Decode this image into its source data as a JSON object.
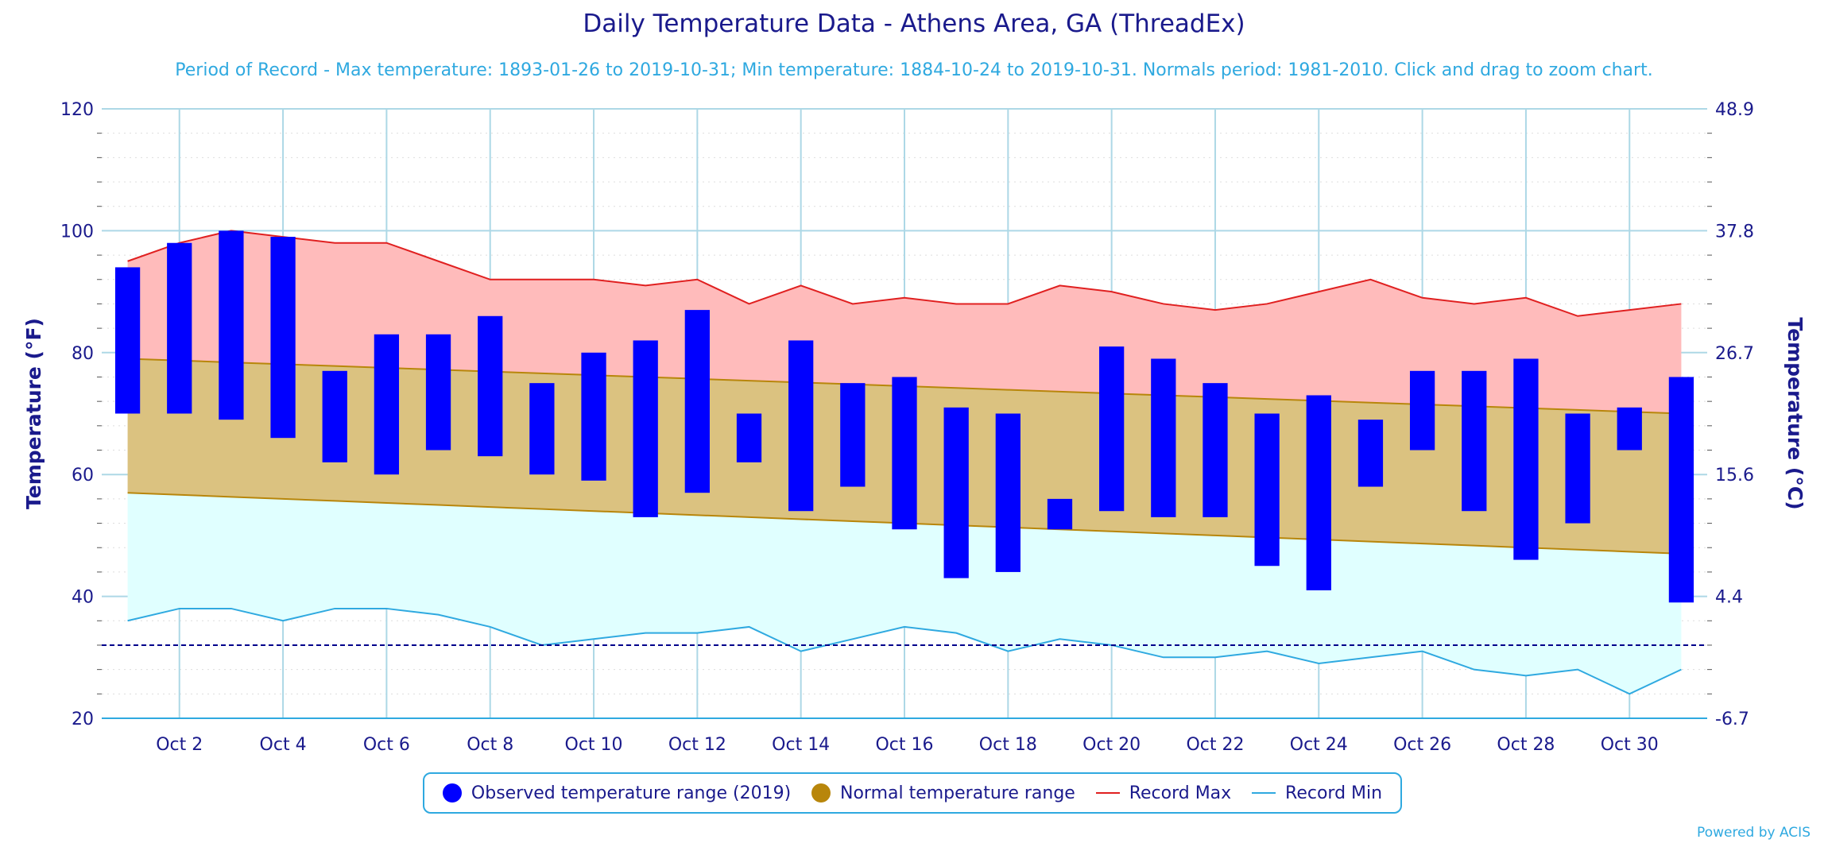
{
  "title": "Daily Temperature Data - Athens Area, GA (ThreadEx)",
  "subtitle": "Period of Record - Max temperature: 1893-01-26 to 2019-10-31; Min temperature: 1884-10-24 to 2019-10-31. Normals period: 1981-2010. Click and drag to zoom chart.",
  "powered_by": "Powered by ACIS",
  "colors": {
    "observed": "#0000ff",
    "normal_fill": "#dbc280",
    "normal_line": "#b8860b",
    "record_max_fill": "#ffbbbb",
    "record_max_line": "#e02020",
    "record_min_fill": "#e0ffff",
    "record_min_line": "#2fa9e0",
    "freezing_line": "#00008b",
    "grid": "#add8e6",
    "axis_text": "#1a1a8c"
  },
  "legend": [
    {
      "label": "Observed temperature range (2019)",
      "icon": "dot",
      "color": "#0000ff"
    },
    {
      "label": "Normal temperature range",
      "icon": "dot",
      "color": "#b8860b"
    },
    {
      "label": "Record Max",
      "icon": "line",
      "color": "#e02020"
    },
    {
      "label": "Record Min",
      "icon": "line",
      "color": "#2fa9e0"
    }
  ],
  "chart_data": {
    "type": "bar",
    "title": "Daily Temperature Data - Athens Area, GA (ThreadEx)",
    "ylabel_left": "Temperature (°F)",
    "ylabel_right": "Temperature (°C)",
    "ylim": [
      20,
      120
    ],
    "y_ticks_left": [
      "20",
      "40",
      "60",
      "80",
      "100",
      "120"
    ],
    "y_ticks_right": [
      "-6.7",
      "4.4",
      "15.6",
      "26.7",
      "37.8",
      "48.9"
    ],
    "x_tick_labels": [
      "Oct 2",
      "Oct 4",
      "Oct 6",
      "Oct 8",
      "Oct 10",
      "Oct 12",
      "Oct 14",
      "Oct 16",
      "Oct 18",
      "Oct 20",
      "Oct 22",
      "Oct 24",
      "Oct 26",
      "Oct 28",
      "Oct 30"
    ],
    "days": [
      1,
      2,
      3,
      4,
      5,
      6,
      7,
      8,
      9,
      10,
      11,
      12,
      13,
      14,
      15,
      16,
      17,
      18,
      19,
      20,
      21,
      22,
      23,
      24,
      25,
      26,
      27,
      28,
      29,
      30,
      31
    ],
    "observed_max": [
      94,
      98,
      100,
      99,
      77,
      83,
      83,
      86,
      75,
      80,
      82,
      87,
      70,
      82,
      75,
      76,
      71,
      70,
      56,
      81,
      79,
      75,
      70,
      73,
      69,
      77,
      77,
      79,
      70,
      71,
      76
    ],
    "observed_min": [
      70,
      70,
      69,
      66,
      62,
      60,
      64,
      63,
      60,
      59,
      53,
      57,
      62,
      54,
      58,
      51,
      43,
      44,
      51,
      54,
      53,
      53,
      45,
      41,
      58,
      64,
      54,
      46,
      52,
      64,
      39
    ],
    "normal_max_start": 79,
    "normal_max_end": 70,
    "normal_min_start": 57,
    "normal_min_end": 47,
    "record_max": [
      95,
      98,
      100,
      99,
      98,
      98,
      95,
      92,
      92,
      92,
      91,
      92,
      88,
      91,
      88,
      89,
      88,
      88,
      91,
      90,
      88,
      87,
      88,
      90,
      92,
      89,
      88,
      89,
      86,
      87,
      88
    ],
    "record_min": [
      36,
      38,
      38,
      36,
      38,
      38,
      37,
      35,
      32,
      33,
      34,
      34,
      35,
      31,
      33,
      35,
      34,
      31,
      33,
      32,
      30,
      30,
      31,
      29,
      30,
      31,
      28,
      27,
      28,
      24,
      28
    ],
    "freezing_line": 32,
    "grid": true,
    "legend_position": "bottom"
  }
}
